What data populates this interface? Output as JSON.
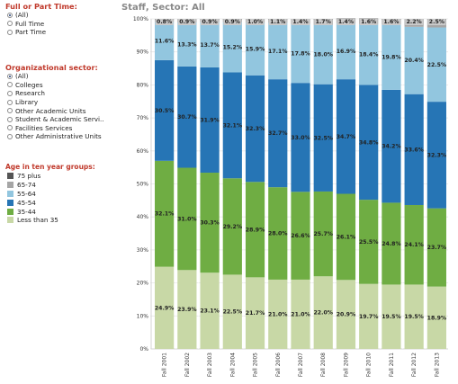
{
  "filters": {
    "time": {
      "title": "Full or Part Time:",
      "options": [
        {
          "label": "(All)",
          "selected": true
        },
        {
          "label": "Full Time",
          "selected": false
        },
        {
          "label": "Part Time",
          "selected": false
        }
      ]
    },
    "sector": {
      "title": "Organizational sector:",
      "options": [
        {
          "label": "(All)",
          "selected": true
        },
        {
          "label": "Colleges",
          "selected": false
        },
        {
          "label": "Research",
          "selected": false
        },
        {
          "label": "Library",
          "selected": false
        },
        {
          "label": "Other Academic Units",
          "selected": false
        },
        {
          "label": "Student & Academic Servi..",
          "selected": false
        },
        {
          "label": "Facilities Services",
          "selected": false
        },
        {
          "label": "Other Administrative Units",
          "selected": false
        }
      ]
    }
  },
  "legend": {
    "title": "Age in ten year groups:",
    "items": [
      {
        "label": "75 plus",
        "color": "#555555"
      },
      {
        "label": "65-74",
        "color": "#a6a6a6"
      },
      {
        "label": "55-64",
        "color": "#92c6df"
      },
      {
        "label": "45-54",
        "color": "#2675b5"
      },
      {
        "label": "35-44",
        "color": "#6fad43"
      },
      {
        "label": "Less than 35",
        "color": "#c8d8a6"
      }
    ]
  },
  "chart_title": "Staff, Sector: All",
  "chart_data": {
    "type": "bar",
    "stacked": true,
    "title": "Staff, Sector: All",
    "categories": [
      "Fall 2001",
      "Fall 2002",
      "Fall 2003",
      "Fall 2004",
      "Fall 2005",
      "Fall 2006",
      "Fall 2007",
      "Fall 2008",
      "Fall 2009",
      "Fall 2010",
      "Fall 2011",
      "Fall 2012",
      "Fall 2013"
    ],
    "y_ticks": [
      "0%",
      "10%",
      "20%",
      "30%",
      "40%",
      "50%",
      "60%",
      "70%",
      "80%",
      "90%",
      "100%"
    ],
    "ylim": [
      0,
      100
    ],
    "series": [
      {
        "name": "Less than 35",
        "color": "#c8d8a6",
        "values": [
          24.9,
          23.9,
          23.1,
          22.5,
          21.7,
          21.0,
          21.0,
          22.0,
          20.9,
          19.7,
          19.5,
          19.5,
          18.9
        ],
        "labels": [
          "24.9%",
          "23.9%",
          "23.1%",
          "22.5%",
          "21.7%",
          "21.0%",
          "21.0%",
          "22.0%",
          "20.9%",
          "19.7%",
          "19.5%",
          "19.5%",
          "18.9%"
        ]
      },
      {
        "name": "35-44",
        "color": "#6fad43",
        "values": [
          32.1,
          31.0,
          30.3,
          29.2,
          28.9,
          28.0,
          26.6,
          25.7,
          26.1,
          25.5,
          24.8,
          24.1,
          23.7
        ],
        "labels": [
          "32.1%",
          "31.0%",
          "30.3%",
          "29.2%",
          "28.9%",
          "28.0%",
          "26.6%",
          "25.7%",
          "26.1%",
          "25.5%",
          "24.8%",
          "24.1%",
          "23.7%"
        ]
      },
      {
        "name": "45-54",
        "color": "#2675b5",
        "values": [
          30.5,
          30.7,
          31.9,
          32.1,
          32.3,
          32.7,
          33.0,
          32.5,
          34.7,
          34.8,
          34.2,
          33.6,
          32.3
        ],
        "labels": [
          "30.5%",
          "30.7%",
          "31.9%",
          "32.1%",
          "32.3%",
          "32.7%",
          "33.0%",
          "32.5%",
          "34.7%",
          "34.8%",
          "34.2%",
          "33.6%",
          "32.3%"
        ]
      },
      {
        "name": "55-64",
        "color": "#92c6df",
        "values": [
          11.6,
          13.3,
          13.7,
          15.2,
          15.9,
          17.1,
          17.8,
          18.0,
          16.9,
          18.4,
          19.8,
          20.4,
          22.5
        ],
        "labels": [
          "11.6%",
          "13.3%",
          "13.7%",
          "15.2%",
          "15.9%",
          "17.1%",
          "17.8%",
          "18.0%",
          "16.9%",
          "18.4%",
          "19.8%",
          "20.4%",
          "22.5%"
        ]
      },
      {
        "name": "65-74",
        "color": "#a6a6a6",
        "values": [
          0.8,
          0.9,
          0.9,
          0.9,
          1.0,
          1.1,
          1.4,
          1.7,
          1.4,
          1.6,
          1.6,
          2.2,
          2.5
        ],
        "labels": [
          "0.8%",
          "0.9%",
          "0.9%",
          "0.9%",
          "1.0%",
          "1.1%",
          "1.4%",
          "1.7%",
          "1.4%",
          "1.6%",
          "1.6%",
          "2.2%",
          "2.5%"
        ]
      },
      {
        "name": "75 plus",
        "color": "#555555",
        "values": [
          0.1,
          0.1,
          0.1,
          0.1,
          0.1,
          0.1,
          0.1,
          0.1,
          0.1,
          0.1,
          0.1,
          0.1,
          0.1
        ],
        "labels": []
      }
    ]
  }
}
